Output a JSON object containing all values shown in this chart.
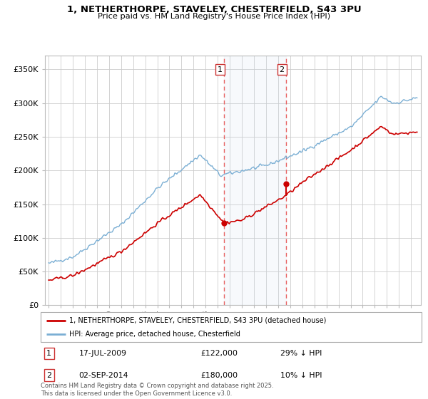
{
  "title_line1": "1, NETHERTHORPE, STAVELEY, CHESTERFIELD, S43 3PU",
  "title_line2": "Price paid vs. HM Land Registry's House Price Index (HPI)",
  "hpi_color": "#7bafd4",
  "price_color": "#cc0000",
  "vline_color": "#e86060",
  "shade_color": "#ddeeff",
  "ylim": [
    0,
    370000
  ],
  "xlim_start": 1994.7,
  "xlim_end": 2025.8,
  "sale1_date_label": "17-JUL-2009",
  "sale1_price": 122000,
  "sale1_pct": "29% ↓ HPI",
  "sale1_x": 2009.54,
  "sale2_date_label": "02-SEP-2014",
  "sale2_price": 180000,
  "sale2_pct": "10% ↓ HPI",
  "sale2_x": 2014.67,
  "legend_label1": "1, NETHERTHORPE, STAVELEY, CHESTERFIELD, S43 3PU (detached house)",
  "legend_label2": "HPI: Average price, detached house, Chesterfield",
  "footnote": "Contains HM Land Registry data © Crown copyright and database right 2025.\nThis data is licensed under the Open Government Licence v3.0.",
  "yticks": [
    0,
    50000,
    100000,
    150000,
    200000,
    250000,
    300000,
    350000
  ],
  "ytick_labels": [
    "£0",
    "£50K",
    "£100K",
    "£150K",
    "£200K",
    "£250K",
    "£300K",
    "£350K"
  ]
}
